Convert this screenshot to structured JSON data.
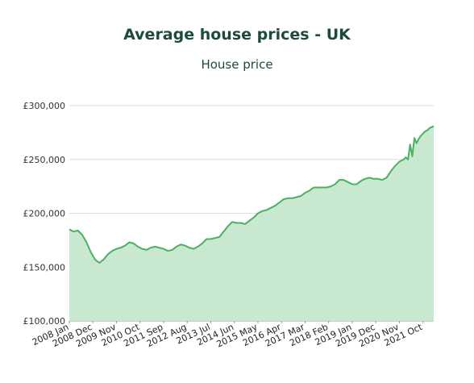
{
  "chart_data": {
    "type": "area",
    "title": "Average house prices - UK",
    "series": [
      {
        "name": "House price",
        "color": "#4caf64",
        "fill": "#c8e9cf",
        "x": [
          "2008-01",
          "2008-03",
          "2008-05",
          "2008-07",
          "2008-09",
          "2008-11",
          "2009-01",
          "2009-03",
          "2009-05",
          "2009-07",
          "2009-09",
          "2009-11",
          "2010-01",
          "2010-03",
          "2010-05",
          "2010-07",
          "2010-09",
          "2010-11",
          "2011-01",
          "2011-03",
          "2011-05",
          "2011-07",
          "2011-09",
          "2011-11",
          "2012-01",
          "2012-03",
          "2012-05",
          "2012-07",
          "2012-09",
          "2012-11",
          "2013-01",
          "2013-03",
          "2013-05",
          "2013-07",
          "2013-09",
          "2013-11",
          "2014-01",
          "2014-03",
          "2014-05",
          "2014-07",
          "2014-09",
          "2014-11",
          "2015-01",
          "2015-03",
          "2015-05",
          "2015-07",
          "2015-09",
          "2015-11",
          "2016-01",
          "2016-03",
          "2016-05",
          "2016-07",
          "2016-09",
          "2016-11",
          "2017-01",
          "2017-03",
          "2017-05",
          "2017-07",
          "2017-09",
          "2017-11",
          "2018-01",
          "2018-03",
          "2018-05",
          "2018-07",
          "2018-09",
          "2018-11",
          "2019-01",
          "2019-03",
          "2019-05",
          "2019-07",
          "2019-09",
          "2019-11",
          "2020-01",
          "2020-03",
          "2020-05",
          "2020-07",
          "2020-09",
          "2020-11",
          "2020-12",
          "2021-01",
          "2021-02",
          "2021-03",
          "2021-04",
          "2021-05",
          "2021-06",
          "2021-07",
          "2021-08",
          "2021-09",
          "2021-10",
          "2021-11",
          "2021-12",
          "2022-01",
          "2022-02",
          "2022-03"
        ],
        "values": [
          185000,
          183000,
          184000,
          180000,
          173000,
          164000,
          157000,
          154000,
          157000,
          162000,
          165000,
          167000,
          168000,
          170000,
          173000,
          172000,
          169000,
          167000,
          166000,
          168000,
          169000,
          168000,
          167000,
          165000,
          166000,
          169000,
          171000,
          170000,
          168000,
          167000,
          169000,
          172000,
          176000,
          176000,
          177000,
          178000,
          183000,
          188000,
          192000,
          191000,
          191000,
          190000,
          193000,
          196000,
          200000,
          202000,
          203000,
          205000,
          207000,
          210000,
          213000,
          214000,
          214000,
          215000,
          216000,
          219000,
          221000,
          224000,
          224000,
          224000,
          224000,
          225000,
          227000,
          231000,
          231000,
          229000,
          227000,
          227000,
          230000,
          232000,
          233000,
          232000,
          232000,
          231000,
          233000,
          239000,
          244000,
          248000,
          249000,
          250000,
          252000,
          250000,
          264000,
          253000,
          270000,
          265000,
          269000,
          272000,
          274000,
          276000,
          277000,
          279000,
          280000,
          281000
        ]
      }
    ],
    "xticks": [
      "2008 Jan",
      "2008 Dec",
      "2009 Nov",
      "2010 Oct",
      "2011 Sep",
      "2012 Aug",
      "2013 Jul",
      "2014 Jun",
      "2015 May",
      "2016 Apr",
      "2017 Mar",
      "2018 Feb",
      "2019 Jan",
      "2019 Dec",
      "2020 Nov",
      "2021 Oct"
    ],
    "xtick_dates": [
      "2008-01",
      "2008-12",
      "2009-11",
      "2010-10",
      "2011-09",
      "2012-08",
      "2013-07",
      "2014-06",
      "2015-05",
      "2016-04",
      "2017-03",
      "2018-02",
      "2019-01",
      "2019-12",
      "2020-11",
      "2021-10"
    ],
    "yticks": [
      100000,
      150000,
      200000,
      250000,
      300000
    ],
    "ytick_labels": [
      "£100,000",
      "£150,000",
      "£200,000",
      "£250,000",
      "£300,000"
    ],
    "xlim": [
      "2008-01",
      "2022-03"
    ],
    "ylim": [
      100000,
      300000
    ],
    "grid": true,
    "xlabel": "",
    "ylabel": "",
    "subtitle": "House price"
  }
}
